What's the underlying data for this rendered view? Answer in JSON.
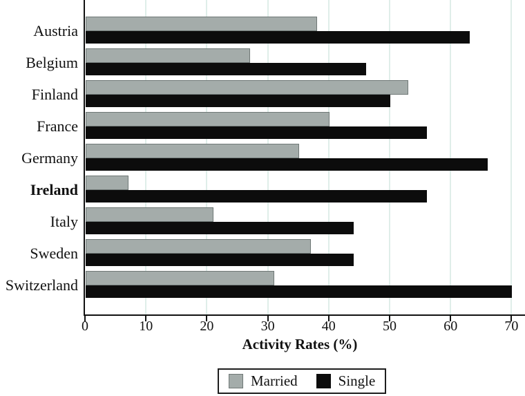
{
  "chart_data": {
    "type": "bar",
    "orientation": "horizontal",
    "title": "",
    "xlabel": "Activity Rates (%)",
    "ylabel": "",
    "categories": [
      "Austria",
      "Belgium",
      "Finland",
      "France",
      "Germany",
      "Ireland",
      "Italy",
      "Sweden",
      "Switzerland"
    ],
    "emphasized_category": "Ireland",
    "series": [
      {
        "name": "Married",
        "color": "#a4acaa",
        "border_color": "#6f7876",
        "values": [
          38,
          27,
          53,
          40,
          35,
          7,
          21,
          37,
          31
        ]
      },
      {
        "name": "Single",
        "color": "#0c0c0c",
        "border_color": "#0c0c0c",
        "values": [
          63,
          46,
          50,
          56,
          66,
          56,
          44,
          44,
          70
        ]
      }
    ],
    "x_ticks": [
      0,
      10,
      20,
      30,
      40,
      50,
      60,
      70
    ],
    "xlim": [
      0,
      72
    ],
    "grid": "vertical gridlines at each x tick",
    "gridline_color": "#dfeee9",
    "axis_color": "#111111",
    "legend_position": "bottom-center"
  }
}
